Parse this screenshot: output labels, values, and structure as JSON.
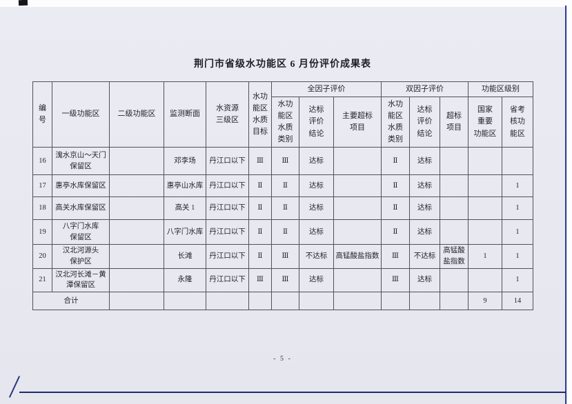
{
  "page": {
    "title": "荆门市省级水功能区 6 月份评价成果表",
    "page_number": "- 5 -"
  },
  "table": {
    "headers": {
      "no": "编\n号",
      "level1": "一级功能区",
      "level2": "二级功能区",
      "section": "监测断面",
      "resource": "水资源\n三级区",
      "target": "水功\n能区\n水质\n目标",
      "full_factor": {
        "title": "全因子评价",
        "category": "水功\n能区\n水质\n类别",
        "conclusion": "达标\n评价\n结论",
        "exceed": "主要超标\n项目"
      },
      "two_factor": {
        "title": "双因子评价",
        "category": "水功\n能区\n水质\n类别",
        "conclusion": "达标\n评价\n结论",
        "exceed": "超标\n项目"
      },
      "zone_level": {
        "title": "功能区级别",
        "national": "国家\n重要\n功能区",
        "provincial": "省考\n核功\n能区"
      }
    },
    "rows": [
      {
        "no": "16",
        "level1": "溾水京山～天门\n保留区",
        "level2": "",
        "section": "邓李场",
        "resource": "丹江口以下",
        "target": "Ⅲ",
        "ff_cat": "Ⅲ",
        "ff_concl": "达标",
        "ff_exceed": "",
        "tf_cat": "Ⅱ",
        "tf_concl": "达标",
        "tf_exceed": "",
        "national": "",
        "provincial": ""
      },
      {
        "no": "17",
        "level1": "惠亭水库保留区",
        "level2": "",
        "section": "惠亭山水库",
        "resource": "丹江口以下",
        "target": "Ⅱ",
        "ff_cat": "Ⅱ",
        "ff_concl": "达标",
        "ff_exceed": "",
        "tf_cat": "Ⅱ",
        "tf_concl": "达标",
        "tf_exceed": "",
        "national": "",
        "provincial": "1"
      },
      {
        "no": "18",
        "level1": "高关水库保留区",
        "level2": "",
        "section": "高关 1",
        "resource": "丹江口以下",
        "target": "Ⅱ",
        "ff_cat": "Ⅱ",
        "ff_concl": "达标",
        "ff_exceed": "",
        "tf_cat": "Ⅱ",
        "tf_concl": "达标",
        "tf_exceed": "",
        "national": "",
        "provincial": "1"
      },
      {
        "no": "19",
        "level1": "八字门水库\n保留区",
        "level2": "",
        "section": "八字门水库",
        "resource": "丹江口以下",
        "target": "Ⅱ",
        "ff_cat": "Ⅱ",
        "ff_concl": "达标",
        "ff_exceed": "",
        "tf_cat": "Ⅱ",
        "tf_concl": "达标",
        "tf_exceed": "",
        "national": "",
        "provincial": "1"
      },
      {
        "no": "20",
        "level1": "汉北河源头\n保护区",
        "level2": "",
        "section": "长滩",
        "resource": "丹江口以下",
        "target": "Ⅱ",
        "ff_cat": "Ⅲ",
        "ff_concl": "不达标",
        "ff_exceed": "高锰酸盐指数",
        "tf_cat": "Ⅲ",
        "tf_concl": "不达标",
        "tf_exceed": "高锰酸\n盐指数",
        "national": "1",
        "provincial": "1"
      },
      {
        "no": "21",
        "level1": "汉北河长滩－黄\n潭保留区",
        "level2": "",
        "section": "永隆",
        "resource": "丹江口以下",
        "target": "Ⅲ",
        "ff_cat": "Ⅲ",
        "ff_concl": "达标",
        "ff_exceed": "",
        "tf_cat": "Ⅲ",
        "tf_concl": "达标",
        "tf_exceed": "",
        "national": "",
        "provincial": "1"
      }
    ],
    "total": {
      "label": "合计",
      "national": "9",
      "provincial": "14"
    }
  }
}
